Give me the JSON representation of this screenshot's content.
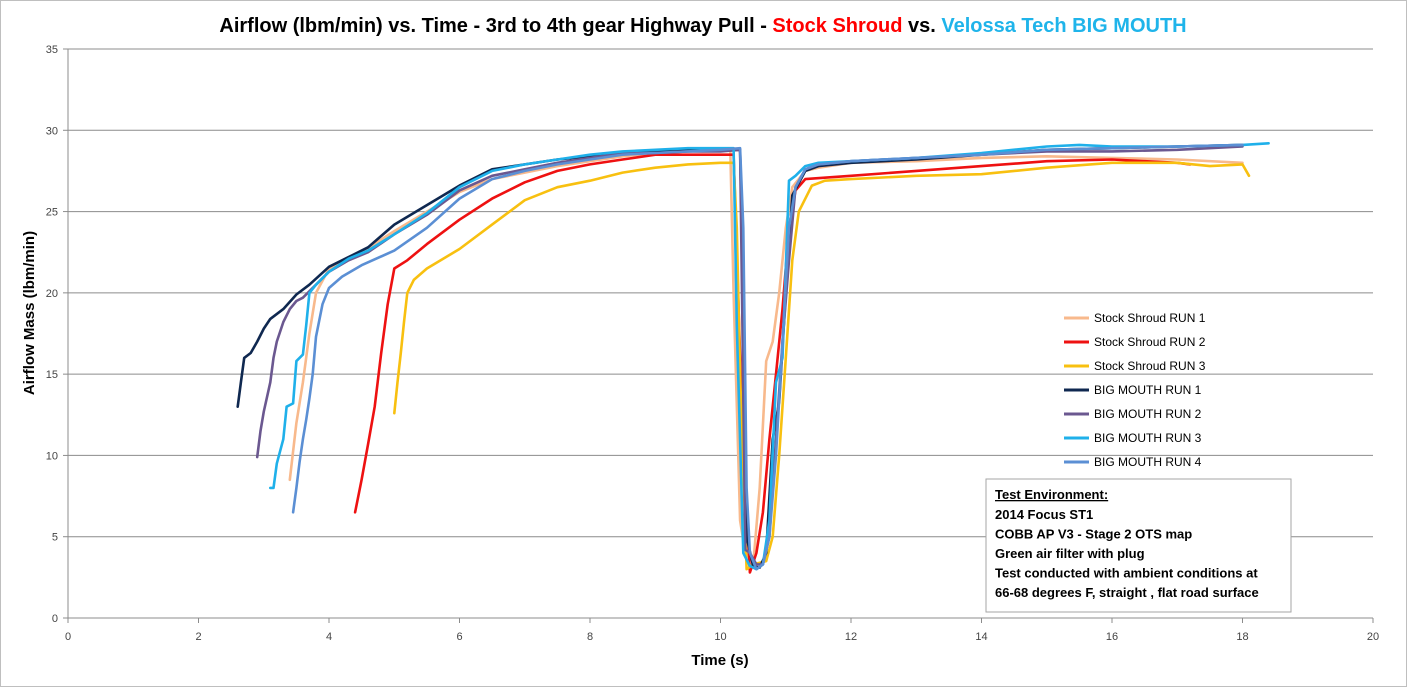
{
  "chart_data": {
    "type": "line",
    "title_parts": [
      {
        "text": "Airflow (lbm/min) vs. Time - 3rd to 4th gear Highway Pull - ",
        "color": "#000000"
      },
      {
        "text": "Stock Shroud",
        "color": "#ff0000"
      },
      {
        "text": " vs. ",
        "color": "#000000"
      },
      {
        "text": "Velossa Tech BIG MOUTH",
        "color": "#1fb4ea"
      }
    ],
    "xlabel": "Time (s)",
    "ylabel": "Airflow Mass (lbm/min)",
    "xlim": [
      0,
      20
    ],
    "ylim": [
      0,
      35
    ],
    "x_ticks": [
      0,
      2,
      4,
      6,
      8,
      10,
      12,
      14,
      16,
      18,
      20
    ],
    "y_ticks": [
      0,
      5,
      10,
      15,
      20,
      25,
      30,
      35
    ],
    "grid": "horizontal",
    "legend_position": "right",
    "series": [
      {
        "name": "Stock Shroud RUN 1",
        "color": "#f8b98c",
        "points": [
          [
            3.4,
            8.5
          ],
          [
            3.5,
            12
          ],
          [
            3.6,
            14.5
          ],
          [
            3.7,
            17.5
          ],
          [
            3.8,
            20
          ],
          [
            4.0,
            21.5
          ],
          [
            4.5,
            22.5
          ],
          [
            5.0,
            23.8
          ],
          [
            5.5,
            25
          ],
          [
            6.0,
            26.2
          ],
          [
            6.5,
            27
          ],
          [
            7.0,
            27.4
          ],
          [
            7.5,
            27.8
          ],
          [
            8.0,
            28.1
          ],
          [
            8.5,
            28.4
          ],
          [
            9.0,
            28.6
          ],
          [
            9.5,
            28.7
          ],
          [
            10.0,
            28.8
          ],
          [
            10.15,
            28.8
          ],
          [
            10.2,
            20
          ],
          [
            10.3,
            6
          ],
          [
            10.4,
            3.5
          ],
          [
            10.5,
            3.2
          ],
          [
            10.6,
            8
          ],
          [
            10.7,
            15.8
          ],
          [
            10.8,
            17
          ],
          [
            10.9,
            20
          ],
          [
            11.0,
            24
          ],
          [
            11.1,
            26.5
          ],
          [
            11.3,
            27.5
          ],
          [
            11.5,
            27.7
          ],
          [
            12.0,
            28
          ],
          [
            13.0,
            28.1
          ],
          [
            14.0,
            28.3
          ],
          [
            15.0,
            28.4
          ],
          [
            16.0,
            28.3
          ],
          [
            17.0,
            28.2
          ],
          [
            18.0,
            28
          ]
        ]
      },
      {
        "name": "Stock Shroud RUN 2",
        "color": "#ee1111",
        "points": [
          [
            4.4,
            6.5
          ],
          [
            4.5,
            8.5
          ],
          [
            4.6,
            10.7
          ],
          [
            4.7,
            13
          ],
          [
            4.8,
            16.3
          ],
          [
            4.9,
            19.3
          ],
          [
            5.0,
            21.5
          ],
          [
            5.2,
            22
          ],
          [
            5.5,
            23
          ],
          [
            6.0,
            24.5
          ],
          [
            6.5,
            25.8
          ],
          [
            7.0,
            26.8
          ],
          [
            7.5,
            27.5
          ],
          [
            8.0,
            27.9
          ],
          [
            8.5,
            28.2
          ],
          [
            9.0,
            28.5
          ],
          [
            9.5,
            28.5
          ],
          [
            10.0,
            28.5
          ],
          [
            10.2,
            28.5
          ],
          [
            10.35,
            10
          ],
          [
            10.45,
            2.8
          ],
          [
            10.55,
            4
          ],
          [
            10.65,
            6.5
          ],
          [
            10.75,
            11
          ],
          [
            10.85,
            15
          ],
          [
            10.95,
            19
          ],
          [
            11.05,
            24
          ],
          [
            11.15,
            26.3
          ],
          [
            11.3,
            27
          ],
          [
            12.0,
            27.2
          ],
          [
            13.0,
            27.5
          ],
          [
            14.0,
            27.8
          ],
          [
            15.0,
            28.1
          ],
          [
            16.0,
            28.2
          ],
          [
            16.5,
            28.1
          ],
          [
            17.0,
            28
          ],
          [
            17.2,
            27.9
          ]
        ]
      },
      {
        "name": "Stock Shroud RUN 3",
        "color": "#f8c010",
        "points": [
          [
            5.0,
            12.6
          ],
          [
            5.05,
            14.5
          ],
          [
            5.1,
            16.3
          ],
          [
            5.15,
            18.2
          ],
          [
            5.2,
            20
          ],
          [
            5.3,
            20.8
          ],
          [
            5.5,
            21.5
          ],
          [
            6.0,
            22.7
          ],
          [
            6.5,
            24.2
          ],
          [
            7.0,
            25.7
          ],
          [
            7.5,
            26.5
          ],
          [
            8.0,
            26.9
          ],
          [
            8.5,
            27.4
          ],
          [
            9.0,
            27.7
          ],
          [
            9.5,
            27.9
          ],
          [
            10.0,
            28
          ],
          [
            10.2,
            28
          ],
          [
            10.25,
            24
          ],
          [
            10.3,
            15
          ],
          [
            10.4,
            3
          ],
          [
            10.5,
            3.3
          ],
          [
            10.6,
            3.4
          ],
          [
            10.7,
            3.5
          ],
          [
            10.8,
            5
          ],
          [
            10.9,
            10
          ],
          [
            11.0,
            16
          ],
          [
            11.1,
            22
          ],
          [
            11.2,
            25
          ],
          [
            11.4,
            26.6
          ],
          [
            11.6,
            26.9
          ],
          [
            12.0,
            27
          ],
          [
            13.0,
            27.2
          ],
          [
            14.0,
            27.3
          ],
          [
            15.0,
            27.7
          ],
          [
            16.0,
            28
          ],
          [
            17.0,
            28
          ],
          [
            17.5,
            27.8
          ],
          [
            18.0,
            27.9
          ],
          [
            18.1,
            27.2
          ]
        ]
      },
      {
        "name": "BIG MOUTH RUN 1",
        "color": "#0f2850",
        "points": [
          [
            2.6,
            13
          ],
          [
            2.65,
            14.5
          ],
          [
            2.7,
            16
          ],
          [
            2.8,
            16.3
          ],
          [
            2.9,
            17
          ],
          [
            3.0,
            17.8
          ],
          [
            3.1,
            18.4
          ],
          [
            3.3,
            19
          ],
          [
            3.5,
            19.9
          ],
          [
            3.7,
            20.5
          ],
          [
            4.0,
            21.6
          ],
          [
            4.3,
            22.2
          ],
          [
            4.6,
            22.8
          ],
          [
            5.0,
            24.2
          ],
          [
            5.5,
            25.4
          ],
          [
            6.0,
            26.6
          ],
          [
            6.5,
            27.6
          ],
          [
            7.0,
            27.9
          ],
          [
            7.5,
            28.2
          ],
          [
            8.0,
            28.4
          ],
          [
            8.5,
            28.6
          ],
          [
            9.0,
            28.7
          ],
          [
            9.5,
            28.8
          ],
          [
            10.0,
            28.8
          ],
          [
            10.3,
            28.8
          ],
          [
            10.35,
            20
          ],
          [
            10.4,
            5
          ],
          [
            10.5,
            3.2
          ],
          [
            10.6,
            3.1
          ],
          [
            10.7,
            4
          ],
          [
            10.8,
            11
          ],
          [
            10.9,
            13.3
          ],
          [
            11.0,
            20
          ],
          [
            11.1,
            26
          ],
          [
            11.3,
            27.5
          ],
          [
            11.5,
            27.8
          ],
          [
            12.0,
            28
          ],
          [
            13.0,
            28.2
          ],
          [
            14.0,
            28.5
          ],
          [
            15.0,
            28.8
          ],
          [
            16.0,
            28.9
          ],
          [
            17.0,
            29
          ],
          [
            18.0,
            29.1
          ]
        ]
      },
      {
        "name": "BIG MOUTH RUN 2",
        "color": "#6b5890",
        "points": [
          [
            2.9,
            9.9
          ],
          [
            2.95,
            11.5
          ],
          [
            3.0,
            12.7
          ],
          [
            3.1,
            14.5
          ],
          [
            3.15,
            16
          ],
          [
            3.2,
            17
          ],
          [
            3.3,
            18.2
          ],
          [
            3.4,
            19
          ],
          [
            3.5,
            19.5
          ],
          [
            3.6,
            19.7
          ],
          [
            3.8,
            20.5
          ],
          [
            4.0,
            21.3
          ],
          [
            4.3,
            22
          ],
          [
            4.6,
            22.5
          ],
          [
            5.0,
            23.6
          ],
          [
            5.5,
            24.8
          ],
          [
            6.0,
            26.3
          ],
          [
            6.5,
            27.2
          ],
          [
            7.0,
            27.6
          ],
          [
            7.5,
            28
          ],
          [
            8.0,
            28.3
          ],
          [
            8.5,
            28.6
          ],
          [
            9.0,
            28.6
          ],
          [
            9.5,
            28.7
          ],
          [
            10.0,
            28.7
          ],
          [
            10.3,
            28.8
          ],
          [
            10.33,
            20
          ],
          [
            10.38,
            4.2
          ],
          [
            10.45,
            4
          ],
          [
            10.55,
            3.3
          ],
          [
            10.65,
            3.3
          ],
          [
            10.75,
            5
          ],
          [
            10.85,
            11
          ],
          [
            10.95,
            17
          ],
          [
            11.05,
            22
          ],
          [
            11.15,
            26.5
          ],
          [
            11.3,
            27.6
          ],
          [
            11.5,
            27.9
          ],
          [
            12.0,
            28.1
          ],
          [
            13.0,
            28.3
          ],
          [
            14.0,
            28.5
          ],
          [
            15.0,
            28.7
          ],
          [
            16.0,
            28.7
          ],
          [
            17.0,
            28.8
          ],
          [
            18.0,
            29
          ]
        ]
      },
      {
        "name": "BIG MOUTH RUN 3",
        "color": "#1fb0ea",
        "points": [
          [
            3.1,
            8
          ],
          [
            3.15,
            8
          ],
          [
            3.2,
            9.5
          ],
          [
            3.3,
            11
          ],
          [
            3.35,
            13
          ],
          [
            3.45,
            13.2
          ],
          [
            3.5,
            15.8
          ],
          [
            3.6,
            16.2
          ],
          [
            3.65,
            18
          ],
          [
            3.7,
            20
          ],
          [
            3.8,
            20.5
          ],
          [
            4.0,
            21.3
          ],
          [
            4.3,
            22.1
          ],
          [
            4.6,
            22.6
          ],
          [
            5.0,
            23.6
          ],
          [
            5.5,
            24.9
          ],
          [
            6.0,
            26.5
          ],
          [
            6.5,
            27.5
          ],
          [
            7.0,
            27.9
          ],
          [
            7.5,
            28.2
          ],
          [
            8.0,
            28.5
          ],
          [
            8.5,
            28.7
          ],
          [
            9.0,
            28.8
          ],
          [
            9.5,
            28.9
          ],
          [
            10.0,
            28.9
          ],
          [
            10.2,
            28.9
          ],
          [
            10.25,
            18
          ],
          [
            10.35,
            4
          ],
          [
            10.45,
            3.2
          ],
          [
            10.55,
            3
          ],
          [
            10.65,
            3.3
          ],
          [
            10.75,
            6
          ],
          [
            10.85,
            14.5
          ],
          [
            10.95,
            16
          ],
          [
            11.05,
            26.9
          ],
          [
            11.15,
            27.2
          ],
          [
            11.3,
            27.8
          ],
          [
            11.5,
            28
          ],
          [
            12.0,
            28.1
          ],
          [
            13.0,
            28.3
          ],
          [
            14.0,
            28.6
          ],
          [
            15.0,
            29
          ],
          [
            15.5,
            29.1
          ],
          [
            16.0,
            29
          ],
          [
            17.0,
            29
          ],
          [
            18.0,
            29.1
          ],
          [
            18.4,
            29.2
          ]
        ]
      },
      {
        "name": "BIG MOUTH RUN 4",
        "color": "#5b8fd4",
        "points": [
          [
            3.45,
            6.5
          ],
          [
            3.5,
            8
          ],
          [
            3.55,
            9.6
          ],
          [
            3.6,
            11
          ],
          [
            3.65,
            12.2
          ],
          [
            3.7,
            13.5
          ],
          [
            3.75,
            15
          ],
          [
            3.8,
            17.3
          ],
          [
            3.9,
            19.3
          ],
          [
            4.0,
            20.3
          ],
          [
            4.2,
            21
          ],
          [
            4.5,
            21.7
          ],
          [
            5.0,
            22.6
          ],
          [
            5.5,
            24
          ],
          [
            6.0,
            25.8
          ],
          [
            6.5,
            27
          ],
          [
            7.0,
            27.5
          ],
          [
            7.5,
            27.9
          ],
          [
            8.0,
            28.2
          ],
          [
            8.5,
            28.5
          ],
          [
            9.0,
            28.6
          ],
          [
            9.5,
            28.7
          ],
          [
            10.0,
            28.8
          ],
          [
            10.3,
            28.9
          ],
          [
            10.35,
            24
          ],
          [
            10.4,
            8
          ],
          [
            10.45,
            4
          ],
          [
            10.55,
            3
          ],
          [
            10.65,
            3.3
          ],
          [
            10.75,
            5
          ],
          [
            10.85,
            10
          ],
          [
            10.95,
            17
          ],
          [
            11.05,
            24
          ],
          [
            11.15,
            26.5
          ],
          [
            11.3,
            27.6
          ],
          [
            11.5,
            27.9
          ],
          [
            12.0,
            28.1
          ],
          [
            13.0,
            28.3
          ],
          [
            14.0,
            28.5
          ],
          [
            15.0,
            28.8
          ],
          [
            16.0,
            28.9
          ],
          [
            17.0,
            29
          ],
          [
            18.0,
            29.1
          ]
        ]
      }
    ],
    "annotation": {
      "title": "Test Environment:",
      "lines": [
        "2014 Focus ST1",
        "COBB AP V3 - Stage 2 OTS map",
        "Green air filter with plug",
        "Test conducted with ambient conditions at",
        "66-68 degrees F, straight , flat road surface"
      ]
    }
  }
}
